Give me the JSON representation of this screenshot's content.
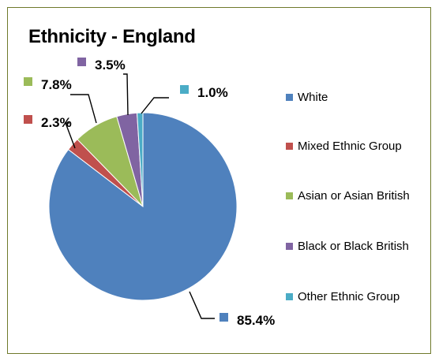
{
  "chart_data": {
    "type": "pie",
    "title": "Ethnicity - England",
    "categories": [
      "White",
      "Mixed Ethnic Group",
      "Asian or Asian British",
      "Black or Black British",
      "Other Ethnic Group"
    ],
    "values": [
      85.4,
      2.3,
      7.8,
      3.5,
      1.0
    ],
    "data_labels": [
      "85.4%",
      "2.3%",
      "7.8%",
      "3.5%",
      "1.0%"
    ],
    "colors": [
      "#4f81bd",
      "#c0504d",
      "#9bbb59",
      "#8064a2",
      "#4bacc6"
    ],
    "legend_position": "right",
    "legend": [
      {
        "label": "White"
      },
      {
        "label": "Mixed Ethnic Group"
      },
      {
        "label": "Asian or Asian British"
      },
      {
        "label": "Black or Black British"
      },
      {
        "label": "Other Ethnic Group"
      }
    ]
  },
  "colors": {
    "frame_border": "#6f7a2b",
    "leader_line": "#000000"
  }
}
